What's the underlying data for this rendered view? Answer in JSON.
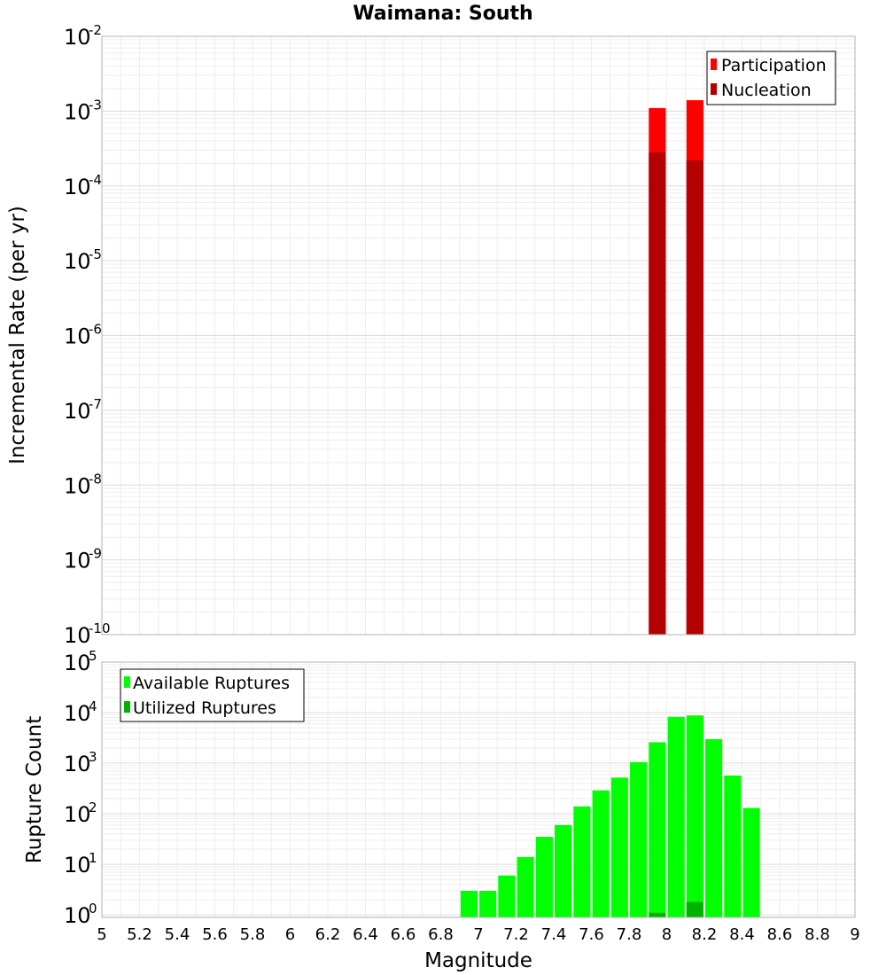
{
  "chart_data": [
    {
      "type": "bar",
      "title": "Waimana: South",
      "ylabel": "Incremental Rate (per yr)",
      "xlabel": "",
      "yscale": "log",
      "ylim_exp": [
        -10,
        -2
      ],
      "xlim": [
        5,
        9
      ],
      "grid": true,
      "legend_placement": "top-right",
      "colors": {
        "Participation": "#ff0000",
        "Nucleation": "#b30000"
      },
      "y_ticks": [
        {
          "base": "10",
          "exp": "-10"
        },
        {
          "base": "10",
          "exp": "-9"
        },
        {
          "base": "10",
          "exp": "-8"
        },
        {
          "base": "10",
          "exp": "-7"
        },
        {
          "base": "10",
          "exp": "-6"
        },
        {
          "base": "10",
          "exp": "-5"
        },
        {
          "base": "10",
          "exp": "-4"
        },
        {
          "base": "10",
          "exp": "-3"
        },
        {
          "base": "10",
          "exp": "-2"
        }
      ],
      "bar_width": 0.09,
      "series": [
        {
          "name": "Participation",
          "x": [
            7.95,
            8.15
          ],
          "values": [
            0.0011,
            0.0014
          ]
        },
        {
          "name": "Nucleation",
          "x": [
            7.95,
            8.15
          ],
          "values": [
            0.00028,
            0.00022
          ]
        }
      ]
    },
    {
      "type": "bar",
      "title": "",
      "ylabel": "Rupture Count",
      "xlabel": "Magnitude",
      "yscale": "log",
      "ylim_exp": [
        -0.05,
        5
      ],
      "xlim": [
        5,
        9
      ],
      "grid": true,
      "legend_placement": "top-left",
      "colors": {
        "Available Ruptures": "#00ff00",
        "Utilized Ruptures": "#00b300"
      },
      "y_ticks": [
        {
          "base": "10",
          "exp": "0"
        },
        {
          "base": "10",
          "exp": "1"
        },
        {
          "base": "10",
          "exp": "2"
        },
        {
          "base": "10",
          "exp": "3"
        },
        {
          "base": "10",
          "exp": "4"
        },
        {
          "base": "10",
          "exp": "5"
        }
      ],
      "x_ticks": [
        "5",
        "5.2",
        "5.4",
        "5.6",
        "5.8",
        "6",
        "6.2",
        "6.4",
        "6.6",
        "6.8",
        "7",
        "7.2",
        "7.4",
        "7.6",
        "7.8",
        "8",
        "8.2",
        "8.4",
        "8.6",
        "8.8",
        "9"
      ],
      "bar_width": 0.09,
      "series": [
        {
          "name": "Available Ruptures",
          "x": [
            6.95,
            7.05,
            7.15,
            7.25,
            7.35,
            7.45,
            7.55,
            7.65,
            7.75,
            7.85,
            7.95,
            8.05,
            8.15,
            8.25,
            8.35,
            8.45
          ],
          "values": [
            3,
            3,
            6,
            14,
            35,
            60,
            140,
            290,
            520,
            1050,
            2600,
            8300,
            8800,
            3000,
            570,
            130
          ]
        },
        {
          "name": "Utilized Ruptures",
          "x": [
            7.95,
            8.15
          ],
          "values": [
            1.1,
            1.8
          ]
        }
      ]
    }
  ]
}
